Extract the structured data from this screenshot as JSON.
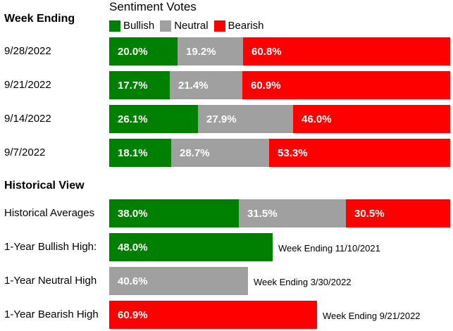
{
  "headers": {
    "week_ending": "Week Ending",
    "sentiment_votes": "Sentiment Votes",
    "historical_view": "Historical View"
  },
  "legend": [
    {
      "name": "Bullish",
      "color": "#008000"
    },
    {
      "name": "Neutral",
      "color": "#A0A0A0"
    },
    {
      "name": "Bearish",
      "color": "#FF0000"
    }
  ],
  "chart_data": {
    "type": "bar",
    "stacked": true,
    "orientation": "horizontal",
    "xlim": [
      0,
      100
    ],
    "series_names": [
      "Bullish",
      "Neutral",
      "Bearish"
    ],
    "colors": {
      "Bullish": "#008000",
      "Neutral": "#A0A0A0",
      "Bearish": "#FF0000"
    },
    "weekly": [
      {
        "label": "9/28/2022",
        "values": [
          20.0,
          19.2,
          60.8
        ],
        "texts": [
          "20.0%",
          "19.2%",
          "60.8%"
        ]
      },
      {
        "label": "9/21/2022",
        "values": [
          17.7,
          21.4,
          60.9
        ],
        "texts": [
          "17.7%",
          "21.4%",
          "60.9%"
        ]
      },
      {
        "label": "9/14/2022",
        "values": [
          26.1,
          27.9,
          46.0
        ],
        "texts": [
          "26.1%",
          "27.9%",
          "46.0%"
        ]
      },
      {
        "label": "9/7/2022",
        "values": [
          18.1,
          28.7,
          53.3
        ],
        "texts": [
          "18.1%",
          "28.7%",
          "53.3%"
        ]
      }
    ],
    "historical_average": {
      "label": "Historical Averages",
      "values": [
        38.0,
        31.5,
        30.5
      ],
      "texts": [
        "38.0%",
        "31.5%",
        "30.5%"
      ]
    },
    "one_year_highs": [
      {
        "label": "1-Year Bullish High:",
        "series": "Bullish",
        "value": 48.0,
        "text": "48.0%",
        "note": "Week Ending 11/10/2021"
      },
      {
        "label": "1-Year Neutral High",
        "series": "Neutral",
        "value": 40.6,
        "text": "40.6%",
        "note": "Week Ending 3/30/2022"
      },
      {
        "label": "1-Year Bearish High",
        "series": "Bearish",
        "value": 60.9,
        "text": "60.9%",
        "note": "Week Ending 9/21/2022"
      }
    ]
  }
}
